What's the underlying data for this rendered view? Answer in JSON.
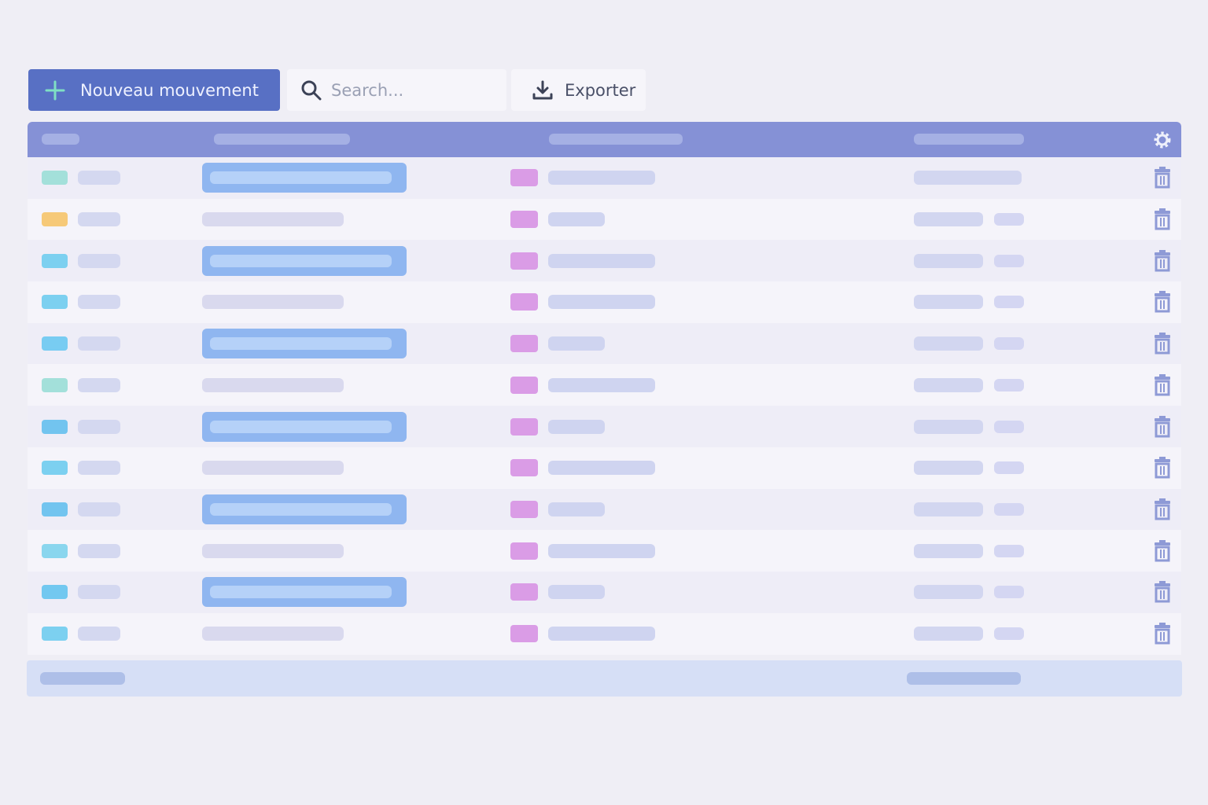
{
  "toolbar": {
    "new_button": "Nouveau mouvement",
    "search_placeholder": "Search...",
    "export_button": "Exporter"
  }
}
